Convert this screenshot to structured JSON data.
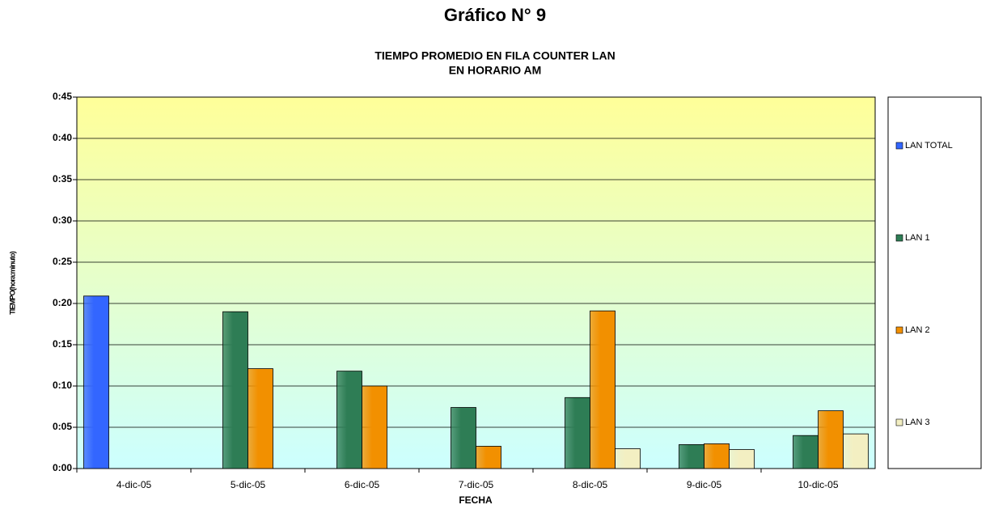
{
  "chart_data": {
    "type": "bar",
    "title": "Gráfico N° 9",
    "subtitle": [
      "TIEMPO PROMEDIO EN FILA COUNTER LAN",
      "EN HORARIO AM"
    ],
    "x_label": "FECHA",
    "y_label": "TIEMPO(hora:minuto)",
    "categories": [
      "4-dic-05",
      "5-dic-05",
      "6-dic-05",
      "7-dic-05",
      "8-dic-05",
      "9-dic-05",
      "10-dic-05"
    ],
    "series": [
      {
        "name": "LAN TOTAL",
        "color": "#3366ff",
        "values": [
          20.9,
          null,
          null,
          null,
          null,
          null,
          null
        ]
      },
      {
        "name": "LAN 1",
        "color": "#2e7d55",
        "values": [
          null,
          19.0,
          11.8,
          7.4,
          8.6,
          2.9,
          4.0
        ]
      },
      {
        "name": "LAN 2",
        "color": "#f29000",
        "values": [
          null,
          12.1,
          10.0,
          2.7,
          19.1,
          3.0,
          7.0
        ]
      },
      {
        "name": "LAN 3",
        "color": "#f3efc2",
        "values": [
          null,
          null,
          null,
          null,
          2.4,
          2.3,
          4.2
        ]
      }
    ],
    "ylim": [
      0,
      45
    ],
    "yticks": [
      {
        "value": 0,
        "label": "0:00"
      },
      {
        "value": 5,
        "label": "0:05"
      },
      {
        "value": 10,
        "label": "0:10"
      },
      {
        "value": 15,
        "label": "0:15"
      },
      {
        "value": 20,
        "label": "0:20"
      },
      {
        "value": 25,
        "label": "0:25"
      },
      {
        "value": 30,
        "label": "0:30"
      },
      {
        "value": 35,
        "label": "0:35"
      },
      {
        "value": 40,
        "label": "0:40"
      },
      {
        "value": 45,
        "label": "0:45"
      }
    ],
    "grid": true,
    "legend": "right"
  }
}
